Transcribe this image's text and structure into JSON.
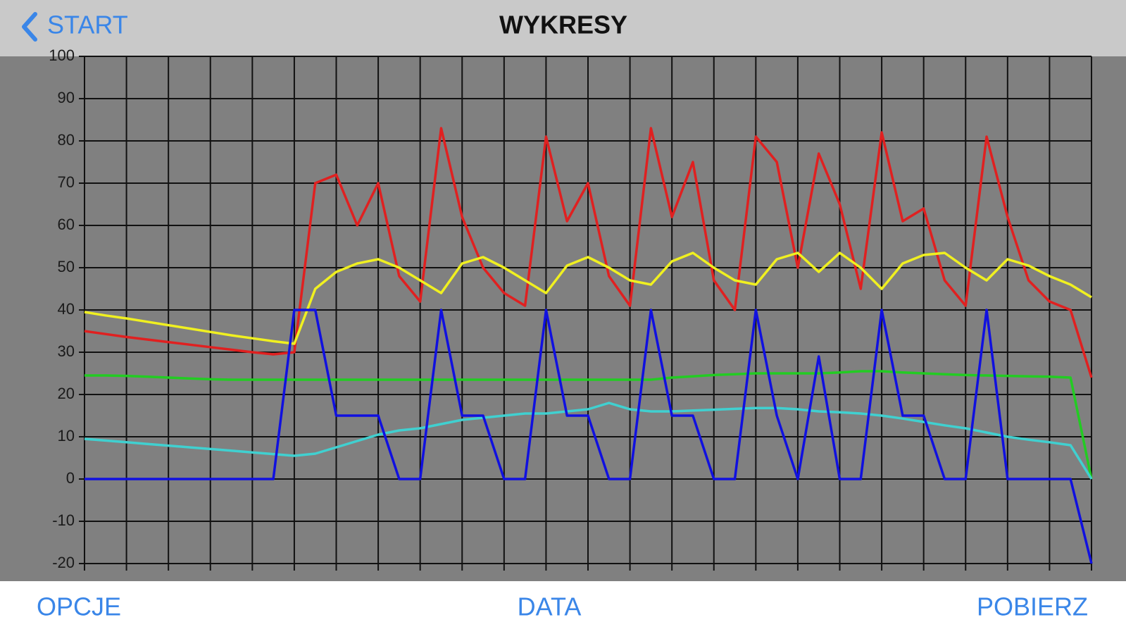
{
  "ui": {
    "back": "START",
    "title": "WYKRESY",
    "buttons": [
      "OPCJE",
      "DATA",
      "POBIERZ"
    ]
  },
  "chart_data": {
    "type": "line",
    "categories": [
      null,
      null,
      null,
      null,
      null,
      null,
      null,
      null,
      null,
      null,
      null,
      null,
      null,
      null,
      null,
      null,
      null,
      null,
      null,
      null,
      null,
      null,
      null,
      null,
      null,
      null,
      null,
      null,
      null,
      null,
      null,
      null,
      null,
      null,
      null,
      null,
      null,
      null,
      null,
      null,
      null,
      null,
      null,
      null,
      null,
      null,
      null,
      null,
      null
    ],
    "ylim": [
      -20,
      100
    ],
    "yticks": [
      -20,
      -10,
      0,
      10,
      20,
      30,
      40,
      50,
      60,
      70,
      80,
      90,
      100
    ],
    "grid": true,
    "series": [
      {
        "color": "#e02020",
        "values": [
          35,
          34.3,
          33.6,
          33,
          32.4,
          31.8,
          31.2,
          30.6,
          30,
          29.5,
          30,
          70,
          72,
          60,
          70,
          48,
          42,
          83,
          62,
          50,
          44,
          41,
          81,
          61,
          70,
          48,
          41,
          83,
          62,
          75,
          47,
          40,
          81,
          75,
          50,
          77,
          65,
          45,
          82,
          61,
          64,
          47,
          41,
          81,
          62,
          47,
          42,
          40,
          24
        ]
      },
      {
        "color": "#f0f020",
        "values": [
          39.5,
          38.7,
          38,
          37.2,
          36.4,
          35.6,
          34.8,
          34,
          33.3,
          32.6,
          32,
          45,
          49,
          51,
          52,
          50,
          47,
          44,
          51,
          52.5,
          50,
          47,
          44,
          50.5,
          52.5,
          50,
          47,
          46,
          51.5,
          53.5,
          50,
          47,
          46,
          52,
          53.5,
          49,
          53.5,
          50,
          45,
          51,
          53,
          53.5,
          50,
          47,
          52,
          50.5,
          48,
          46,
          43
        ]
      },
      {
        "color": "#22cc22",
        "values": [
          24.5,
          24.5,
          24.4,
          24.2,
          24,
          23.8,
          23.6,
          23.5,
          23.5,
          23.5,
          23.5,
          23.5,
          23.5,
          23.5,
          23.5,
          23.5,
          23.5,
          23.5,
          23.5,
          23.5,
          23.5,
          23.5,
          23.5,
          23.5,
          23.5,
          23.5,
          23.5,
          23.5,
          24,
          24.3,
          24.6,
          24.8,
          25,
          25,
          25,
          25,
          25.2,
          25.5,
          25.5,
          25.2,
          25,
          24.8,
          24.6,
          24.5,
          24.4,
          24.3,
          24.2,
          24,
          0
        ]
      },
      {
        "color": "#40d0d0",
        "values": [
          9.5,
          9.1,
          8.7,
          8.3,
          7.9,
          7.5,
          7.1,
          6.7,
          6.3,
          5.9,
          5.5,
          6,
          7.5,
          9,
          10.5,
          11.5,
          12,
          13,
          14,
          14.5,
          15,
          15.5,
          15.5,
          16,
          16.5,
          18,
          16.5,
          16,
          16,
          16.2,
          16.4,
          16.6,
          16.8,
          16.8,
          16.5,
          16,
          15.8,
          15.5,
          15,
          14.3,
          13.5,
          12.7,
          12,
          11,
          10,
          9.3,
          8.7,
          8,
          0
        ]
      },
      {
        "color": "#1010e0",
        "values": [
          0,
          0,
          0,
          0,
          0,
          0,
          0,
          0,
          0,
          0,
          40,
          40,
          15,
          15,
          15,
          0,
          0,
          40,
          15,
          15,
          0,
          0,
          40,
          15,
          15,
          0,
          0,
          40,
          15,
          15,
          0,
          0,
          40,
          15,
          0,
          29,
          0,
          0,
          40,
          15,
          15,
          0,
          0,
          40,
          0,
          0,
          0,
          0,
          -20
        ]
      }
    ]
  }
}
